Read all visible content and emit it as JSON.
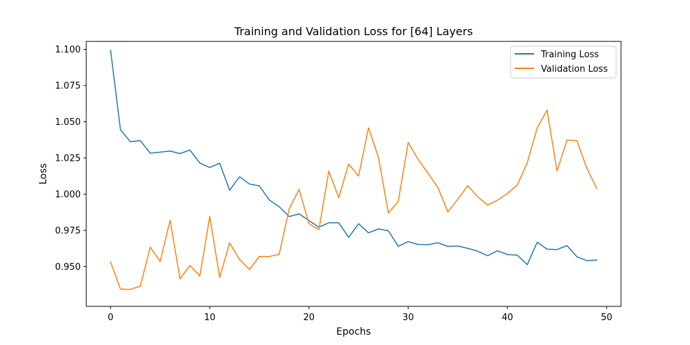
{
  "chart_data": {
    "type": "line",
    "title": "Training and Validation Loss for [64] Layers",
    "xlabel": "Epochs",
    "ylabel": "Loss",
    "xlim": [
      -2.45,
      51.45
    ],
    "ylim": [
      0.9225,
      1.1055
    ],
    "xticks": [
      0,
      10,
      20,
      30,
      40,
      50
    ],
    "xtick_labels": [
      "0",
      "10",
      "20",
      "30",
      "40",
      "50"
    ],
    "yticks": [
      0.95,
      0.975,
      1.0,
      1.025,
      1.05,
      1.075,
      1.1
    ],
    "ytick_labels": [
      "0.950",
      "0.975",
      "1.000",
      "1.025",
      "1.050",
      "1.075",
      "1.100"
    ],
    "grid": false,
    "legend_position": "upper right",
    "x": [
      0,
      1,
      2,
      3,
      4,
      5,
      6,
      7,
      8,
      9,
      10,
      11,
      12,
      13,
      14,
      15,
      16,
      17,
      18,
      19,
      20,
      21,
      22,
      23,
      24,
      25,
      26,
      27,
      28,
      29,
      30,
      31,
      32,
      33,
      34,
      35,
      36,
      37,
      38,
      39,
      40,
      41,
      42,
      43,
      44,
      45,
      46,
      47,
      48,
      49
    ],
    "series": [
      {
        "name": "Training Loss",
        "color": "#1f77b4",
        "values": [
          1.0995,
          1.0445,
          1.0362,
          1.037,
          1.0283,
          1.029,
          1.0298,
          1.028,
          1.0305,
          1.0215,
          1.0184,
          1.0214,
          1.0027,
          1.012,
          1.007,
          1.0057,
          0.996,
          0.9913,
          0.9845,
          0.9864,
          0.9818,
          0.9772,
          0.9802,
          0.9802,
          0.9702,
          0.9796,
          0.9733,
          0.976,
          0.9747,
          0.964,
          0.9672,
          0.9652,
          0.9651,
          0.9664,
          0.9639,
          0.9642,
          0.9626,
          0.9606,
          0.9575,
          0.9609,
          0.9583,
          0.9578,
          0.9513,
          0.9668,
          0.962,
          0.9617,
          0.9645,
          0.9568,
          0.9541,
          0.9545
        ]
      },
      {
        "name": "Validation Loss",
        "color": "#ff7f0e",
        "values": [
          0.9532,
          0.9344,
          0.9342,
          0.9365,
          0.9634,
          0.9535,
          0.982,
          0.9415,
          0.9508,
          0.9435,
          0.9846,
          0.9425,
          0.9663,
          0.955,
          0.948,
          0.957,
          0.9569,
          0.9585,
          0.9897,
          1.0033,
          0.9796,
          0.9755,
          1.016,
          0.9975,
          1.0208,
          1.0125,
          1.0458,
          1.0255,
          0.987,
          0.995,
          1.0357,
          1.024,
          1.0145,
          1.0045,
          0.9877,
          0.9965,
          1.0058,
          0.9982,
          0.9925,
          0.9958,
          1.0005,
          1.0063,
          1.0217,
          1.0457,
          1.058,
          1.016,
          1.0373,
          1.037,
          1.018,
          1.004
        ]
      }
    ]
  }
}
